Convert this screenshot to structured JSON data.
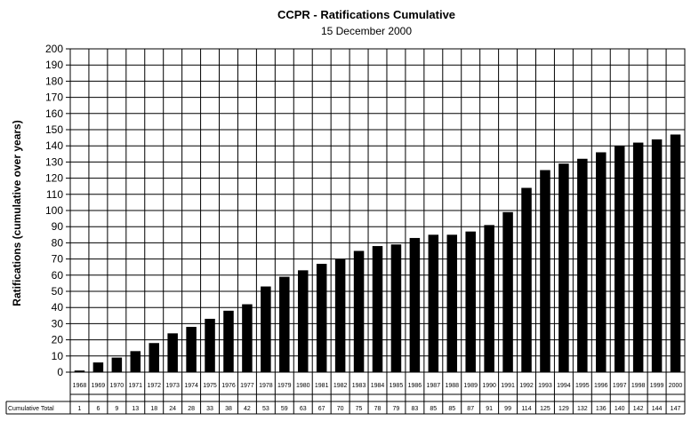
{
  "chart_data": {
    "type": "bar",
    "title": "CCPR - Ratifications Cumulative",
    "subtitle": "15 December 2000",
    "ylabel": "Ratifications (cumulative over years)",
    "xlabel": "",
    "ylim": [
      0,
      200
    ],
    "yticks": [
      0,
      10,
      20,
      30,
      40,
      50,
      60,
      70,
      80,
      90,
      100,
      110,
      120,
      130,
      140,
      150,
      160,
      170,
      180,
      190,
      200
    ],
    "grid": true,
    "legend": "none",
    "bar_color": "#000000",
    "categories": [
      "1968",
      "1969",
      "1970",
      "1971",
      "1972",
      "1973",
      "1974",
      "1975",
      "1976",
      "1977",
      "1978",
      "1979",
      "1980",
      "1981",
      "1982",
      "1983",
      "1984",
      "1985",
      "1986",
      "1987",
      "1988",
      "1989",
      "1990",
      "1991",
      "1992",
      "1993",
      "1994",
      "1995",
      "1996",
      "1997",
      "1998",
      "1999",
      "2000"
    ],
    "values": [
      1,
      6,
      9,
      13,
      18,
      24,
      28,
      33,
      38,
      42,
      53,
      59,
      63,
      67,
      70,
      75,
      78,
      79,
      83,
      85,
      85,
      87,
      91,
      99,
      114,
      125,
      129,
      132,
      136,
      140,
      142,
      144,
      147
    ],
    "table_row_label": "Cumulative Total"
  }
}
